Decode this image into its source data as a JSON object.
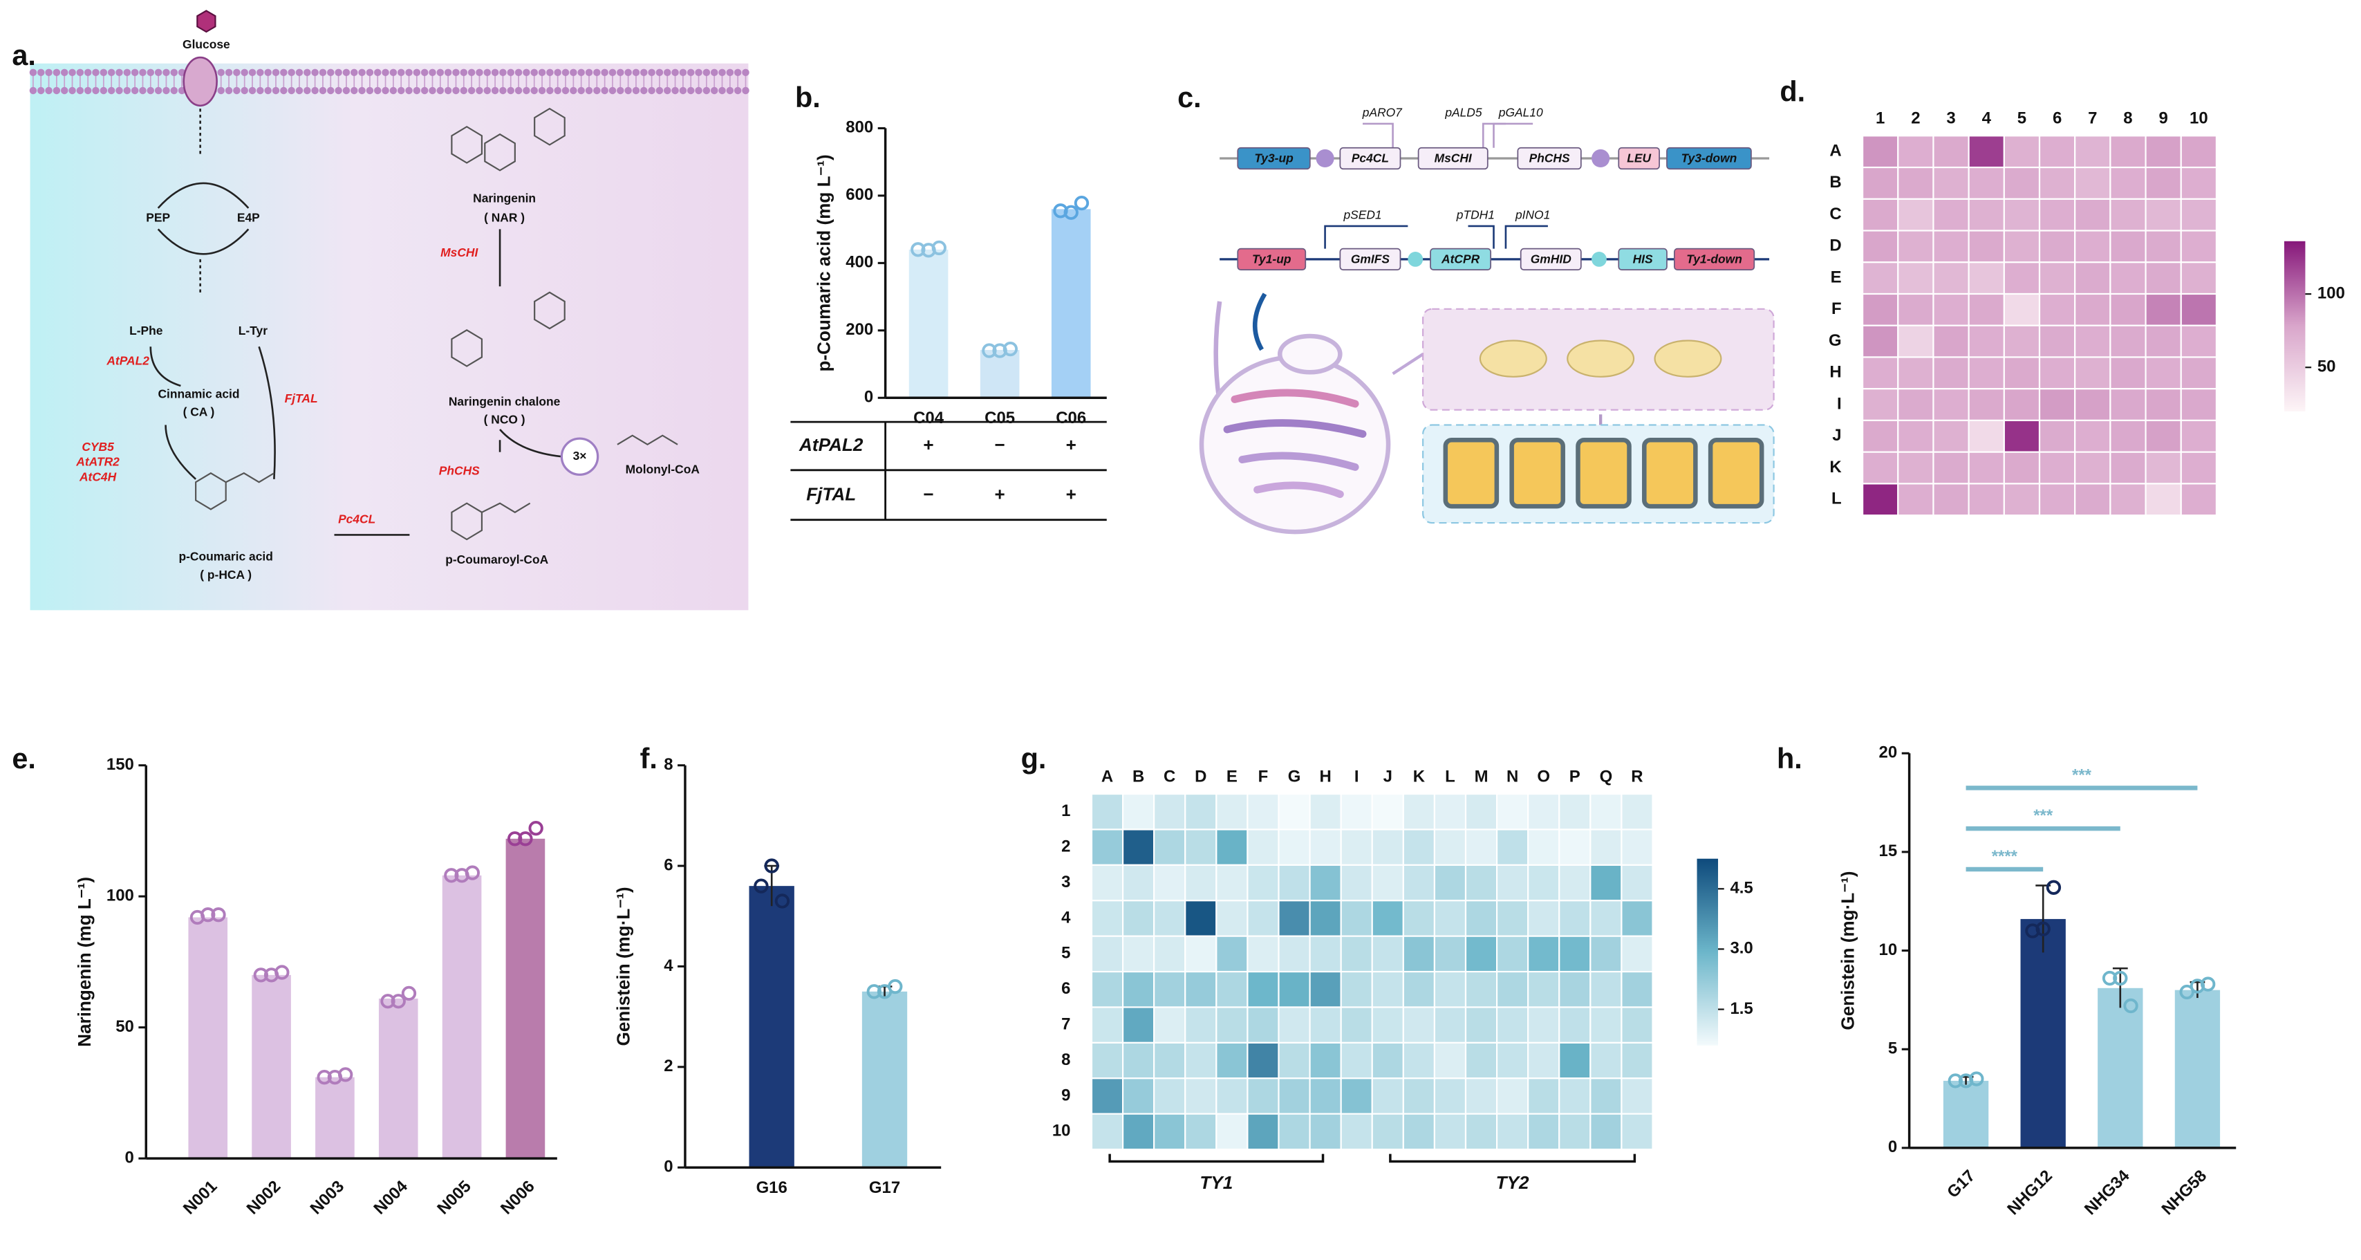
{
  "panel_labels": [
    "a.",
    "b.",
    "c.",
    "d.",
    "e.",
    "f.",
    "g.",
    "h."
  ],
  "pathway": {
    "labels": [
      "Glucose",
      "PEP",
      "E4P",
      "L-Phe",
      "L-Tyr",
      "AtPAL2",
      "FjTAL",
      "Cinnamic acid",
      "( CA )",
      "CYB5",
      "AtATR2",
      "AtC4H",
      "p-Coumaric acid",
      "( p-HCA )",
      "Pc4CL",
      "p-Coumaroyl-CoA",
      "PhCHS",
      "3×",
      "Molonyl-CoA",
      "Naringenin chalone",
      "( NCO )",
      "MsCHI",
      "Naringenin",
      "( NAR )"
    ]
  },
  "constructs": {
    "labels": [
      "pARO7",
      "pALD5",
      "pGAL10",
      "Ty3-up",
      "Pc4CL",
      "MsCHI",
      "PhCHS",
      "LEU",
      "Ty3-down",
      "pSED1",
      "pTDH1",
      "pINO1",
      "Ty1-up",
      "GmIFS",
      "AtCPR",
      "GmHID",
      "HIS",
      "Ty1-down"
    ]
  },
  "chart_data": [
    {
      "type": "bar",
      "y_label": "p-Coumaric acid  (mg L⁻¹)",
      "categories": [
        "C04",
        "C05",
        "C06"
      ],
      "values": [
        440,
        142,
        560
      ],
      "points": [
        [
          440,
          438,
          445
        ],
        [
          140,
          140,
          145
        ],
        [
          555,
          550,
          578
        ]
      ],
      "colors": [
        "#d6ecf8",
        "#cfe6f6",
        "#a4d0f5"
      ],
      "point_colors": [
        "#8cc2e0",
        "#8cc2e0",
        "#5aa6e0"
      ],
      "ylim": [
        0,
        800
      ],
      "yticks": [
        0,
        200,
        400,
        600,
        800
      ],
      "table": {
        "rows": [
          {
            "name": "AtPAL2",
            "cells": [
              "+",
              "−",
              "+"
            ]
          },
          {
            "name": "FjTAL",
            "cells": [
              "−",
              "+",
              "+"
            ]
          }
        ]
      }
    },
    {
      "type": "heatmap",
      "columns": [
        "1",
        "2",
        "3",
        "4",
        "5",
        "6",
        "7",
        "8",
        "9",
        "10"
      ],
      "rows": [
        "A",
        "B",
        "C",
        "D",
        "E",
        "F",
        "G",
        "H",
        "I",
        "J",
        "K",
        "L"
      ],
      "z": [
        [
          85,
          72,
          75,
          120,
          70,
          72,
          68,
          75,
          80,
          78
        ],
        [
          78,
          75,
          70,
          72,
          74,
          70,
          65,
          72,
          78,
          72
        ],
        [
          75,
          55,
          72,
          70,
          68,
          72,
          74,
          70,
          65,
          68
        ],
        [
          78,
          70,
          72,
          75,
          70,
          74,
          72,
          76,
          74,
          72
        ],
        [
          68,
          60,
          65,
          55,
          72,
          70,
          74,
          72,
          74,
          70
        ],
        [
          82,
          74,
          72,
          75,
          40,
          72,
          75,
          78,
          92,
          98
        ],
        [
          85,
          45,
          78,
          72,
          70,
          74,
          72,
          74,
          76,
          72
        ],
        [
          72,
          70,
          74,
          72,
          75,
          72,
          70,
          76,
          72,
          74
        ],
        [
          70,
          74,
          72,
          75,
          78,
          82,
          80,
          76,
          78,
          76
        ],
        [
          75,
          72,
          70,
          40,
          125,
          74,
          72,
          76,
          80,
          72
        ],
        [
          72,
          70,
          74,
          72,
          75,
          72,
          70,
          74,
          65,
          72
        ],
        [
          130,
          72,
          74,
          72,
          70,
          72,
          74,
          70,
          40,
          72
        ]
      ],
      "zlim": [
        20,
        136
      ],
      "zticks": [
        50,
        100
      ],
      "colorscale": [
        "#fdf5f7",
        "#d9a6cb",
        "#86177a"
      ]
    },
    {
      "type": "bar",
      "y_label": "Naringenin  (mg L⁻¹)",
      "categories": [
        "N001",
        "N002",
        "N003",
        "N004",
        "N005",
        "N006"
      ],
      "values": [
        92,
        70,
        31,
        61,
        108,
        122
      ],
      "points": [
        [
          92,
          93,
          93
        ],
        [
          70,
          70,
          71
        ],
        [
          31,
          31,
          32
        ],
        [
          60,
          60,
          63
        ],
        [
          108,
          108,
          109
        ],
        [
          122,
          122,
          126
        ]
      ],
      "colors": [
        "#dcc1e2",
        "#dcc1e2",
        "#dcc1e2",
        "#dcc1e2",
        "#dcc1e2",
        "#b97cac"
      ],
      "point_colors": [
        "#b07cbc",
        "#b07cbc",
        "#b07cbc",
        "#b07cbc",
        "#b07cbc",
        "#9a3f95"
      ],
      "ylim": [
        0,
        150
      ],
      "yticks": [
        0,
        50,
        100,
        150
      ]
    },
    {
      "type": "bar",
      "y_label": "Genistein  (mg·L⁻¹)",
      "categories": [
        "G16",
        "G17"
      ],
      "values": [
        5.6,
        3.5
      ],
      "errors": [
        0.4,
        0.1
      ],
      "points": [
        [
          5.6,
          6.0,
          5.3
        ],
        [
          3.5,
          3.5,
          3.6
        ]
      ],
      "colors": [
        "#1c3a78",
        "#9fd0e0"
      ],
      "point_colors": [
        "#14285a",
        "#6fb6cc"
      ],
      "ylim": [
        0,
        8
      ],
      "yticks": [
        0,
        2,
        4,
        6,
        8
      ]
    },
    {
      "type": "heatmap",
      "columns": [
        "A",
        "B",
        "C",
        "D",
        "E",
        "F",
        "G",
        "H",
        "I",
        "J",
        "K",
        "L",
        "M",
        "N",
        "O",
        "P",
        "Q",
        "R"
      ],
      "rows": [
        "1",
        "2",
        "3",
        "4",
        "5",
        "6",
        "7",
        "8",
        "9",
        "10"
      ],
      "z": [
        [
          1.5,
          0.8,
          1.2,
          1.4,
          1.0,
          0.9,
          0.6,
          1.0,
          0.7,
          0.6,
          1.0,
          0.9,
          1.1,
          0.7,
          0.9,
          1.0,
          0.8,
          1.0
        ],
        [
          2.2,
          4.8,
          1.8,
          1.6,
          3.0,
          1.0,
          0.8,
          0.9,
          1.0,
          1.1,
          1.4,
          1.0,
          0.9,
          1.5,
          0.8,
          0.7,
          1.0,
          0.9
        ],
        [
          1.0,
          1.2,
          0.9,
          1.1,
          1.0,
          1.3,
          1.5,
          2.5,
          1.2,
          1.0,
          1.4,
          1.8,
          1.6,
          1.2,
          1.3,
          1.1,
          3.0,
          1.2
        ],
        [
          1.3,
          1.6,
          1.4,
          5.0,
          1.1,
          1.4,
          3.8,
          3.3,
          1.8,
          2.8,
          1.6,
          1.4,
          1.8,
          1.6,
          1.2,
          1.5,
          1.4,
          2.4
        ],
        [
          1.2,
          1.0,
          1.1,
          0.8,
          2.2,
          1.0,
          1.2,
          1.4,
          1.6,
          1.4,
          2.4,
          1.9,
          2.8,
          1.8,
          2.8,
          2.8,
          2.0,
          1.0
        ],
        [
          1.8,
          2.4,
          2.0,
          2.2,
          1.8,
          2.9,
          3.0,
          3.4,
          1.6,
          1.4,
          1.8,
          1.4,
          1.6,
          1.8,
          1.6,
          1.9,
          1.5,
          2.0
        ],
        [
          1.3,
          3.2,
          1.0,
          1.4,
          1.6,
          1.8,
          1.2,
          1.4,
          1.6,
          1.3,
          1.2,
          1.4,
          1.6,
          1.4,
          1.2,
          1.5,
          1.3,
          1.6
        ],
        [
          1.6,
          1.8,
          1.7,
          1.4,
          2.4,
          4.0,
          1.6,
          2.4,
          1.4,
          1.8,
          1.4,
          1.0,
          1.6,
          1.4,
          1.2,
          3.0,
          1.4,
          1.6
        ],
        [
          3.5,
          2.2,
          1.4,
          1.2,
          1.4,
          1.8,
          2.0,
          2.2,
          2.5,
          1.4,
          1.6,
          1.4,
          1.2,
          1.0,
          1.6,
          1.4,
          1.8,
          1.2
        ],
        [
          1.4,
          3.2,
          2.4,
          1.8,
          0.8,
          3.3,
          1.8,
          2.0,
          1.4,
          1.6,
          1.8,
          1.4,
          1.6,
          1.4,
          1.8,
          1.6,
          2.0,
          1.4
        ]
      ],
      "zlim": [
        0.6,
        5.25
      ],
      "zticks": [
        1.5,
        {
          "value": 3,
          "label": "3.0"
        },
        4.5
      ],
      "colorscale": [
        "#f3fafc",
        "#6cb6ca",
        "#0e4a7c"
      ],
      "groups": [
        {
          "label": "TY1",
          "columns": [
            "A",
            "H"
          ]
        },
        {
          "label": "TY2",
          "columns": [
            "J",
            "R"
          ]
        }
      ]
    },
    {
      "type": "bar",
      "y_label": "Genistein  (mg·L⁻¹)",
      "categories": [
        "G17",
        "NHG12",
        "NHG34",
        "NHG58"
      ],
      "values": [
        3.4,
        11.6,
        8.1,
        8.0
      ],
      "errors": [
        0.2,
        1.7,
        1.0,
        0.4
      ],
      "points": [
        [
          3.4,
          3.4,
          3.5
        ],
        [
          11.0,
          11.1,
          13.2
        ],
        [
          8.6,
          8.6,
          7.2
        ],
        [
          7.9,
          8.2,
          8.3
        ]
      ],
      "colors": [
        "#9fd0e0",
        "#1c3a78",
        "#9fd0e0",
        "#9fd0e0"
      ],
      "point_colors": [
        "#6fb6cc",
        "#14285a",
        "#6fb6cc",
        "#6fb6cc"
      ],
      "ylim": [
        0,
        20
      ],
      "yticks": [
        0,
        5,
        10,
        15,
        20
      ],
      "comparisons": [
        {
          "label": "****",
          "groups": [
            "G17",
            "NHG12"
          ]
        },
        {
          "label": "***",
          "groups": [
            "G17",
            "NHG34"
          ]
        },
        {
          "label": "***",
          "groups": [
            "G17",
            "NHG58"
          ]
        }
      ],
      "comparison_color": "#7bb8cc"
    }
  ]
}
